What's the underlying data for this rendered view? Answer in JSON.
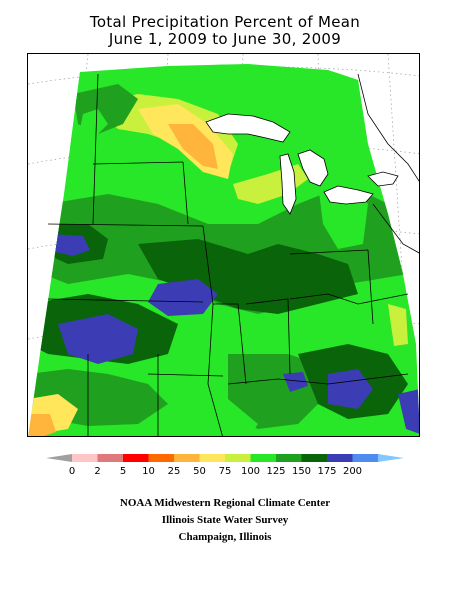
{
  "title": {
    "line1": "Total Precipitation Percent of Mean",
    "line2": "June 1, 2009 to June 30, 2009"
  },
  "legend": {
    "colors": [
      "#ffc6c8",
      "#e07a7a",
      "#ff0000",
      "#ff6a00",
      "#ffb43c",
      "#ffe65a",
      "#c8f03c",
      "#28e628",
      "#1fa01f",
      "#0a640a",
      "#3c3cb4",
      "#508cf0"
    ],
    "low_arrow_color": "#a0a0a0",
    "high_arrow_color": "#80c8ff",
    "labels": [
      "0",
      "2",
      "5",
      "10",
      "25",
      "50",
      "75",
      "100",
      "125",
      "150",
      "175",
      "200"
    ]
  },
  "credits": {
    "line1": "NOAA Midwestern Regional Climate Center",
    "line2": "Illinois State Water Survey",
    "line3": "Champaign, Illinois"
  }
}
